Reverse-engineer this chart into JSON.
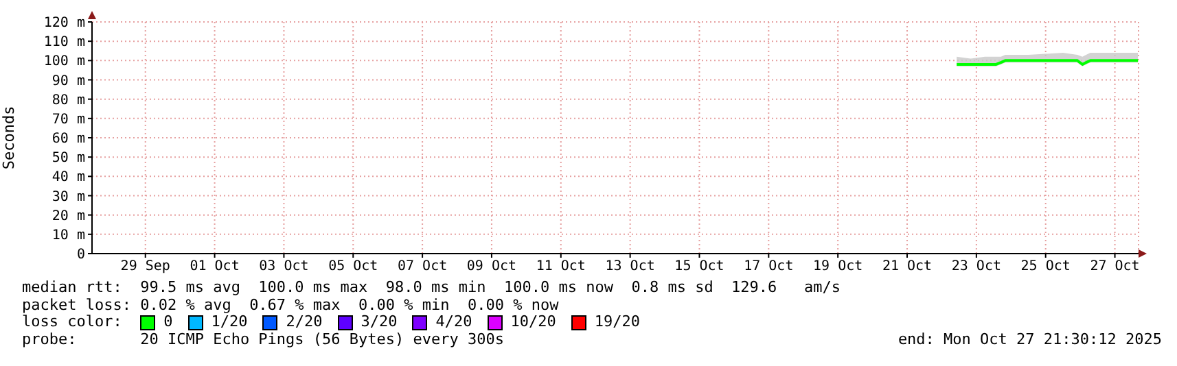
{
  "chart_data": {
    "type": "line",
    "ylabel": "Seconds",
    "legend_title": "loss color:",
    "x": [
      "2025-10-22T10:20",
      "2025-10-22T20:00",
      "2025-10-23T06:00",
      "2025-10-23T13:40",
      "2025-10-23T17:00",
      "2025-10-23T20:00",
      "2025-10-24T12:00",
      "2025-10-25T12:00",
      "2025-10-25T22:00",
      "2025-10-26T01:30",
      "2025-10-26T04:00",
      "2025-10-26T07:00",
      "2025-10-26T20:00",
      "2025-10-27T16:00"
    ],
    "series": [
      {
        "name": "0",
        "color": "#00ff00",
        "values": [
          98,
          98,
          98,
          98,
          99,
          100,
          100,
          100,
          100,
          98,
          99,
          100,
          100,
          100
        ],
        "lower": [
          97,
          97,
          97,
          97,
          98,
          99,
          99,
          99,
          99,
          97,
          98,
          99,
          99,
          99
        ],
        "upper": [
          102,
          101,
          102,
          102,
          102,
          103,
          103,
          104,
          103,
          102,
          103,
          104,
          104,
          104
        ]
      },
      {
        "name": "1/20",
        "color": "#00b8ff",
        "values": [
          null,
          null,
          null,
          null,
          null,
          null,
          null,
          null,
          null,
          null,
          null,
          null,
          null,
          null
        ]
      },
      {
        "name": "2/20",
        "color": "#0059ff",
        "values": [
          null,
          null,
          null,
          null,
          null,
          null,
          null,
          null,
          null,
          null,
          null,
          null,
          null,
          null
        ]
      },
      {
        "name": "3/20",
        "color": "#5e00ff",
        "values": [
          null,
          null,
          null,
          null,
          null,
          null,
          null,
          null,
          null,
          null,
          null,
          null,
          null,
          null
        ]
      },
      {
        "name": "4/20",
        "color": "#7e00ff",
        "values": [
          null,
          null,
          null,
          null,
          null,
          null,
          null,
          null,
          null,
          null,
          null,
          null,
          null,
          null
        ]
      },
      {
        "name": "10/20",
        "color": "#dd00ff",
        "values": [
          null,
          null,
          null,
          null,
          null,
          null,
          null,
          null,
          null,
          null,
          null,
          null,
          null,
          null
        ]
      },
      {
        "name": "19/20",
        "color": "#ff0000",
        "values": [
          null,
          null,
          null,
          null,
          null,
          null,
          null,
          null,
          null,
          null,
          null,
          null,
          null,
          null
        ]
      }
    ],
    "xlim": [
      "2025-09-27T11:00",
      "2025-10-27T16:24"
    ],
    "xticks": [
      {
        "value": "2025-09-29",
        "label": "29 Sep"
      },
      {
        "value": "2025-10-01",
        "label": "01 Oct"
      },
      {
        "value": "2025-10-03",
        "label": "03 Oct"
      },
      {
        "value": "2025-10-05",
        "label": "05 Oct"
      },
      {
        "value": "2025-10-07",
        "label": "07 Oct"
      },
      {
        "value": "2025-10-09",
        "label": "09 Oct"
      },
      {
        "value": "2025-10-11",
        "label": "11 Oct"
      },
      {
        "value": "2025-10-13",
        "label": "13 Oct"
      },
      {
        "value": "2025-10-15",
        "label": "15 Oct"
      },
      {
        "value": "2025-10-17",
        "label": "17 Oct"
      },
      {
        "value": "2025-10-19",
        "label": "19 Oct"
      },
      {
        "value": "2025-10-21",
        "label": "21 Oct"
      },
      {
        "value": "2025-10-23",
        "label": "23 Oct"
      },
      {
        "value": "2025-10-25",
        "label": "25 Oct"
      },
      {
        "value": "2025-10-27",
        "label": "27 Oct"
      }
    ],
    "ylim": [
      0,
      120
    ],
    "yticks": [
      0,
      {
        "value": 10,
        "label": "10 m"
      },
      {
        "value": 20,
        "label": "20 m"
      },
      {
        "value": 30,
        "label": "30 m"
      },
      {
        "value": 40,
        "label": "40 m"
      },
      {
        "value": 50,
        "label": "50 m"
      },
      {
        "value": 60,
        "label": "60 m"
      },
      {
        "value": 70,
        "label": "70 m"
      },
      {
        "value": 80,
        "label": "80 m"
      },
      {
        "value": 90,
        "label": "90 m"
      },
      {
        "value": 100,
        "label": "100 m"
      },
      {
        "value": 110,
        "label": "110 m"
      },
      {
        "value": 120,
        "label": "120 m"
      }
    ],
    "grid": true,
    "legend": "bottom",
    "line_style": "solid",
    "annotations": [
      "median rtt:  99.5 ms avg  100.0 ms max  98.0 ms min  100.0 ms now  0.8 ms sd  129.6   am/s",
      "packet loss: 0.02 % avg  0.67 % max  0.00 % min  0.00 % now",
      "probe:       20 ICMP Echo Pings (56 Bytes) every 300s",
      "end: Mon Oct 27 21:30:12 2025"
    ]
  }
}
